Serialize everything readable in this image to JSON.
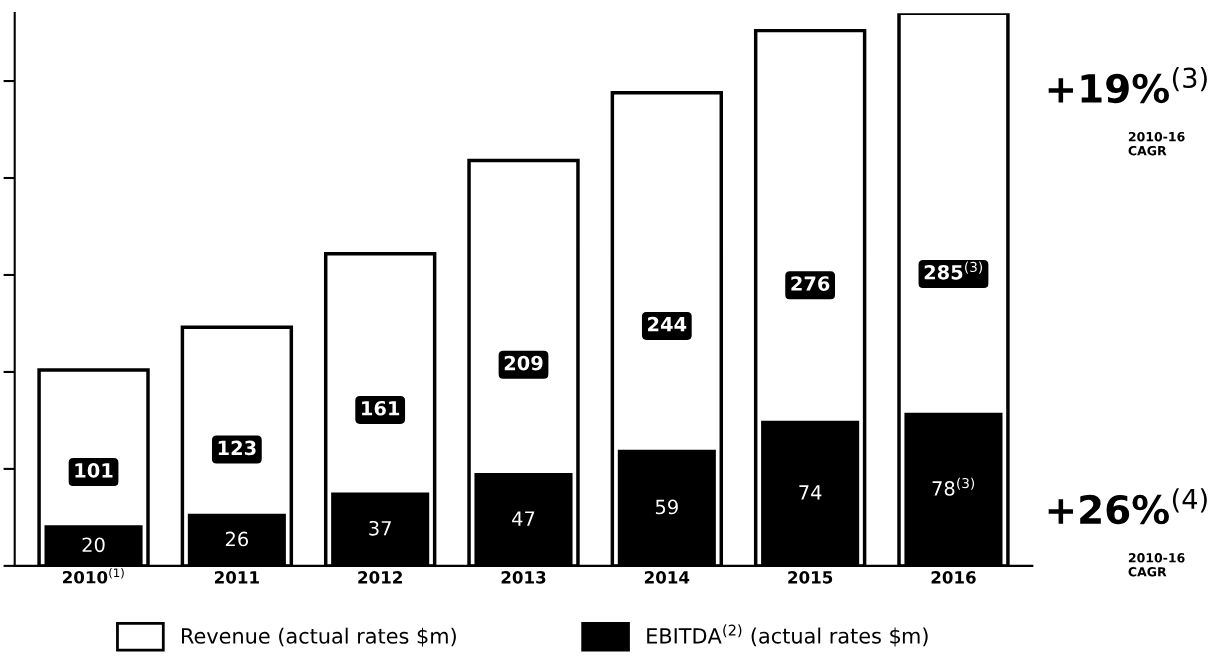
{
  "chart_data": {
    "type": "bar",
    "categories": [
      "2010$^{(1)}$",
      "2011",
      "2012",
      "2013",
      "2014",
      "2015",
      "2016"
    ],
    "series": [
      {
        "name": "Revenue (actual rates $m)",
        "color": "#ffffff",
        "values": [
          101,
          123,
          161,
          209,
          244,
          276,
          285
        ],
        "value_labels": [
          "101",
          "123",
          "161",
          "209",
          "244",
          "276",
          "285$^{(3)}$"
        ]
      },
      {
        "name": "EBITDA$^{(2)}$ (actual rates $m)",
        "color": "#000000",
        "values": [
          20,
          26,
          37,
          47,
          59,
          74,
          78
        ],
        "value_labels": [
          "20",
          "26",
          "37",
          "47",
          "59",
          "74",
          "78$^{(3)}$"
        ]
      }
    ],
    "annotations": [
      "+19%$^{(3)}$",
      "2010-16 CAGR",
      "+26%$^{(4)}$",
      "2010-16 CAGR"
    ],
    "legend": "bottom",
    "tick_labels": "x",
    "grid": false
  }
}
